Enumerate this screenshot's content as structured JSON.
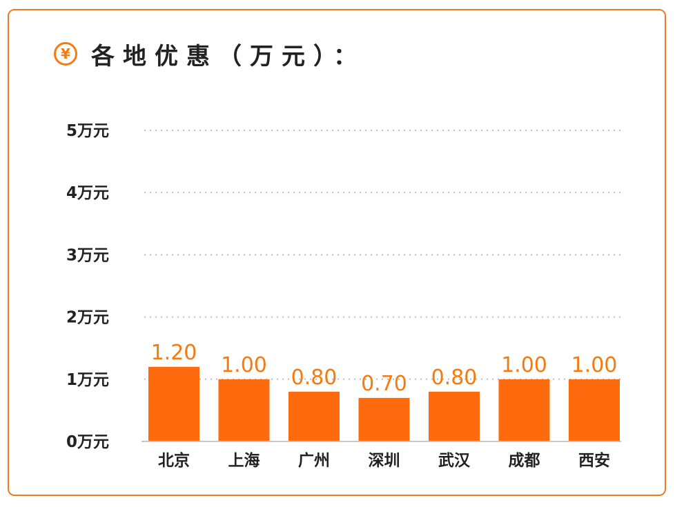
{
  "header": {
    "icon": "yen-icon",
    "icon_glyph": "¥",
    "title": "各地优惠（万元）："
  },
  "colors": {
    "accent": "#f57a10",
    "bar": "#fe6b0f",
    "border": "#f07a1c",
    "grid": "#bbbbbb",
    "text": "#222222"
  },
  "chart_data": {
    "type": "bar",
    "categories": [
      "北京",
      "上海",
      "广州",
      "深圳",
      "武汉",
      "成都",
      "西安"
    ],
    "values": [
      1.2,
      1.0,
      0.8,
      0.7,
      0.8,
      1.0,
      1.0
    ],
    "data_labels": [
      "1.20",
      "1.00",
      "0.80",
      "0.70",
      "0.80",
      "1.00",
      "1.00"
    ],
    "ylim": [
      0,
      5
    ],
    "yticks": [
      0,
      1,
      2,
      3,
      4,
      5
    ],
    "ytick_labels": [
      "0万元",
      "1万元",
      "2万元",
      "3万元",
      "4万元",
      "5万元"
    ],
    "grid": true,
    "grid_style": "dotted",
    "legend": "none"
  }
}
